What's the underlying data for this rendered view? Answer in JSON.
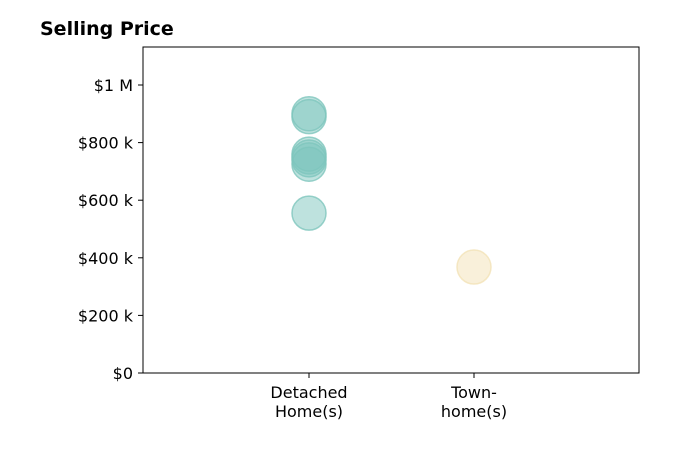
{
  "chart_data": {
    "type": "scatter",
    "title": "Selling Price",
    "xlabel": "",
    "ylabel": "",
    "categories": [
      [
        "Detached",
        "Home(s)"
      ],
      [
        "Town-",
        "home(s)"
      ]
    ],
    "ylim": [
      0,
      1000000
    ],
    "yticks": [
      {
        "value": 0,
        "label": "$0"
      },
      {
        "value": 200000,
        "label": "$200 k"
      },
      {
        "value": 400000,
        "label": "$400 k"
      },
      {
        "value": 600000,
        "label": "$600 k"
      },
      {
        "value": 800000,
        "label": "$800 k"
      },
      {
        "value": 1000000,
        "label": "$1 M"
      }
    ],
    "series": [
      {
        "category_index": 0,
        "color": "#7ec6bd",
        "values": [
          900000,
          890000,
          760000,
          750000,
          740000,
          725000,
          555000
        ]
      },
      {
        "category_index": 1,
        "color": "#f3e2b6",
        "values": [
          368000
        ]
      }
    ],
    "grid": false,
    "legend": "none"
  }
}
